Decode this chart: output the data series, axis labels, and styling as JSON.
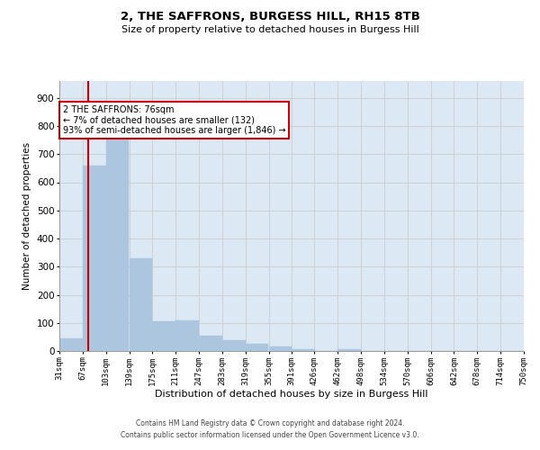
{
  "title": "2, THE SAFFRONS, BURGESS HILL, RH15 8TB",
  "subtitle": "Size of property relative to detached houses in Burgess Hill",
  "xlabel": "Distribution of detached houses by size in Burgess Hill",
  "ylabel": "Number of detached properties",
  "footer_line1": "Contains HM Land Registry data © Crown copyright and database right 2024.",
  "footer_line2": "Contains public sector information licensed under the Open Government Licence v3.0.",
  "annotation_title": "2 THE SAFFRONS: 76sqm",
  "annotation_line1": "← 7% of detached houses are smaller (132)",
  "annotation_line2": "93% of semi-detached houses are larger (1,846) →",
  "property_size": 76,
  "bin_edges": [
    31,
    67,
    103,
    139,
    175,
    211,
    247,
    283,
    319,
    355,
    391,
    426,
    462,
    498,
    534,
    570,
    606,
    642,
    678,
    714,
    750
  ],
  "bar_heights": [
    45,
    660,
    760,
    330,
    105,
    108,
    55,
    38,
    25,
    17,
    5,
    0,
    7,
    0,
    0,
    0,
    0,
    0,
    0,
    0
  ],
  "bar_color": "#adc6e0",
  "bar_edge_color": "#adc6e0",
  "grid_color": "#cccccc",
  "bg_color": "#dce9f5",
  "redline_color": "#cc0000",
  "annotation_box_color": "#ffffff",
  "annotation_box_edge": "#cc0000",
  "ylim": [
    0,
    960
  ],
  "yticks": [
    0,
    100,
    200,
    300,
    400,
    500,
    600,
    700,
    800,
    900
  ]
}
